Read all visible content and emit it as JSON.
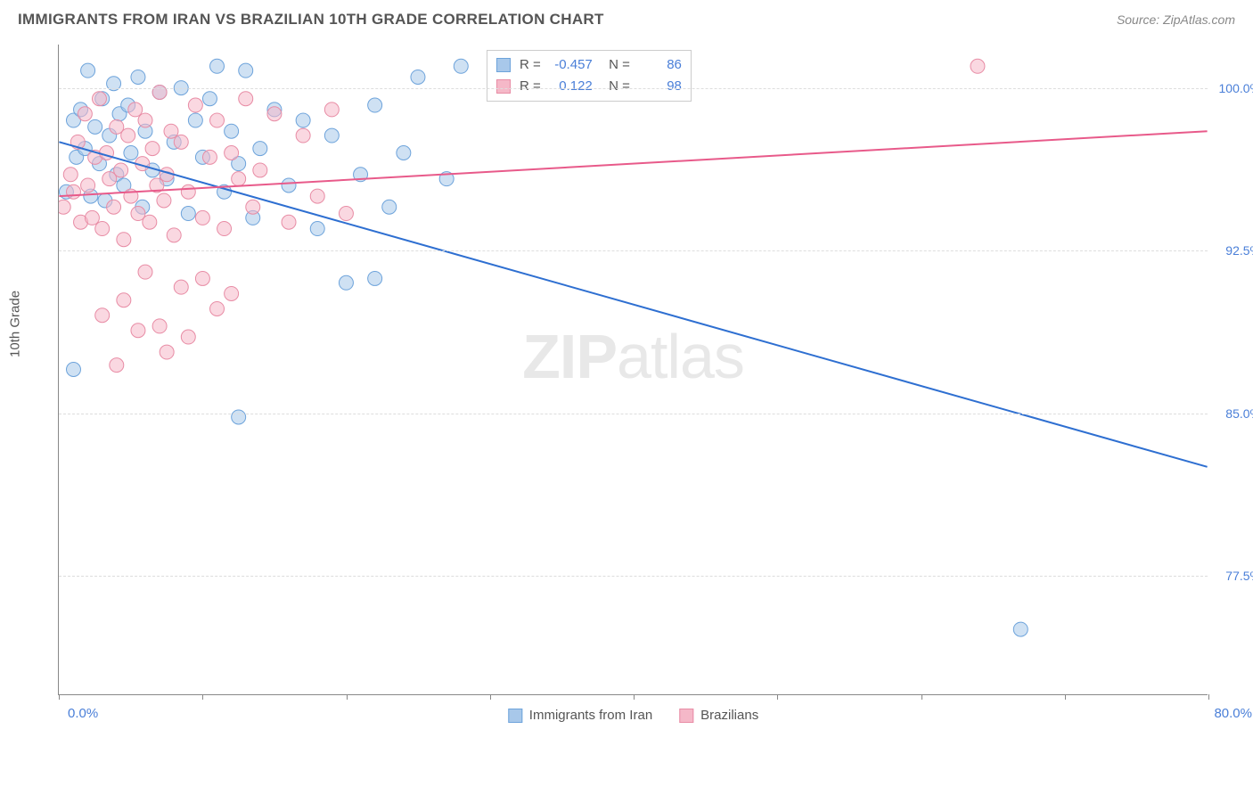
{
  "title": "IMMIGRANTS FROM IRAN VS BRAZILIAN 10TH GRADE CORRELATION CHART",
  "source": "Source: ZipAtlas.com",
  "watermark_bold": "ZIP",
  "watermark_light": "atlas",
  "ylabel": "10th Grade",
  "chart": {
    "type": "scatter",
    "xlim": [
      0,
      80
    ],
    "ylim": [
      72,
      102
    ],
    "x_ticks": [
      0,
      10,
      20,
      30,
      40,
      50,
      60,
      70,
      80
    ],
    "y_ticks": [
      77.5,
      85.0,
      92.5,
      100.0
    ],
    "y_tick_labels": [
      "77.5%",
      "85.0%",
      "92.5%",
      "100.0%"
    ],
    "x_min_label": "0.0%",
    "x_max_label": "80.0%",
    "background_color": "#ffffff",
    "grid_color": "#dddddd",
    "series": [
      {
        "name": "Immigrants from Iran",
        "color_fill": "#a8c8ea",
        "color_stroke": "#6da3db",
        "line_color": "#2e6fd1",
        "marker_radius": 8,
        "marker_opacity": 0.55,
        "R": "-0.457",
        "N": "86",
        "regression": {
          "x1": 0,
          "y1": 97.5,
          "x2": 80,
          "y2": 82.5
        },
        "points": [
          [
            0.5,
            95.2
          ],
          [
            1.0,
            98.5
          ],
          [
            1.2,
            96.8
          ],
          [
            1.5,
            99.0
          ],
          [
            1.8,
            97.2
          ],
          [
            2.0,
            100.8
          ],
          [
            2.2,
            95.0
          ],
          [
            2.5,
            98.2
          ],
          [
            2.8,
            96.5
          ],
          [
            3.0,
            99.5
          ],
          [
            3.2,
            94.8
          ],
          [
            3.5,
            97.8
          ],
          [
            3.8,
            100.2
          ],
          [
            4.0,
            96.0
          ],
          [
            4.2,
            98.8
          ],
          [
            4.5,
            95.5
          ],
          [
            4.8,
            99.2
          ],
          [
            5.0,
            97.0
          ],
          [
            5.5,
            100.5
          ],
          [
            5.8,
            94.5
          ],
          [
            6.0,
            98.0
          ],
          [
            6.5,
            96.2
          ],
          [
            7.0,
            99.8
          ],
          [
            7.5,
            95.8
          ],
          [
            8.0,
            97.5
          ],
          [
            8.5,
            100.0
          ],
          [
            9.0,
            94.2
          ],
          [
            9.5,
            98.5
          ],
          [
            10.0,
            96.8
          ],
          [
            10.5,
            99.5
          ],
          [
            11.0,
            101.0
          ],
          [
            11.5,
            95.2
          ],
          [
            12.0,
            98.0
          ],
          [
            12.5,
            96.5
          ],
          [
            13.0,
            100.8
          ],
          [
            13.5,
            94.0
          ],
          [
            14.0,
            97.2
          ],
          [
            15.0,
            99.0
          ],
          [
            16.0,
            95.5
          ],
          [
            17.0,
            98.5
          ],
          [
            18.0,
            93.5
          ],
          [
            19.0,
            97.8
          ],
          [
            20.0,
            91.0
          ],
          [
            21.0,
            96.0
          ],
          [
            22.0,
            99.2
          ],
          [
            23.0,
            94.5
          ],
          [
            24.0,
            97.0
          ],
          [
            25.0,
            100.5
          ],
          [
            27.0,
            95.8
          ],
          [
            28.0,
            101.0
          ],
          [
            1.0,
            87.0
          ],
          [
            12.5,
            84.8
          ],
          [
            22.0,
            91.2
          ],
          [
            67.0,
            75.0
          ]
        ]
      },
      {
        "name": "Brazilians",
        "color_fill": "#f5b8c8",
        "color_stroke": "#e88ca5",
        "line_color": "#e85a8a",
        "marker_radius": 8,
        "marker_opacity": 0.55,
        "R": "0.122",
        "N": "98",
        "regression": {
          "x1": 0,
          "y1": 95.0,
          "x2": 80,
          "y2": 98.0
        },
        "points": [
          [
            0.3,
            94.5
          ],
          [
            0.8,
            96.0
          ],
          [
            1.0,
            95.2
          ],
          [
            1.3,
            97.5
          ],
          [
            1.5,
            93.8
          ],
          [
            1.8,
            98.8
          ],
          [
            2.0,
            95.5
          ],
          [
            2.3,
            94.0
          ],
          [
            2.5,
            96.8
          ],
          [
            2.8,
            99.5
          ],
          [
            3.0,
            93.5
          ],
          [
            3.3,
            97.0
          ],
          [
            3.5,
            95.8
          ],
          [
            3.8,
            94.5
          ],
          [
            4.0,
            98.2
          ],
          [
            4.3,
            96.2
          ],
          [
            4.5,
            93.0
          ],
          [
            4.8,
            97.8
          ],
          [
            5.0,
            95.0
          ],
          [
            5.3,
            99.0
          ],
          [
            5.5,
            94.2
          ],
          [
            5.8,
            96.5
          ],
          [
            6.0,
            98.5
          ],
          [
            6.3,
            93.8
          ],
          [
            6.5,
            97.2
          ],
          [
            6.8,
            95.5
          ],
          [
            7.0,
            99.8
          ],
          [
            7.3,
            94.8
          ],
          [
            7.5,
            96.0
          ],
          [
            7.8,
            98.0
          ],
          [
            8.0,
            93.2
          ],
          [
            8.5,
            97.5
          ],
          [
            9.0,
            95.2
          ],
          [
            9.5,
            99.2
          ],
          [
            10.0,
            94.0
          ],
          [
            10.5,
            96.8
          ],
          [
            11.0,
            98.5
          ],
          [
            11.5,
            93.5
          ],
          [
            12.0,
            97.0
          ],
          [
            12.5,
            95.8
          ],
          [
            13.0,
            99.5
          ],
          [
            13.5,
            94.5
          ],
          [
            14.0,
            96.2
          ],
          [
            15.0,
            98.8
          ],
          [
            16.0,
            93.8
          ],
          [
            17.0,
            97.8
          ],
          [
            18.0,
            95.0
          ],
          [
            19.0,
            99.0
          ],
          [
            20.0,
            94.2
          ],
          [
            3.0,
            89.5
          ],
          [
            4.5,
            90.2
          ],
          [
            5.5,
            88.8
          ],
          [
            6.0,
            91.5
          ],
          [
            7.0,
            89.0
          ],
          [
            8.5,
            90.8
          ],
          [
            9.0,
            88.5
          ],
          [
            10.0,
            91.2
          ],
          [
            11.0,
            89.8
          ],
          [
            12.0,
            90.5
          ],
          [
            4.0,
            87.2
          ],
          [
            7.5,
            87.8
          ],
          [
            64.0,
            101.0
          ]
        ]
      }
    ]
  },
  "legend_bottom": [
    {
      "label": "Immigrants from Iran",
      "fill": "#a8c8ea",
      "stroke": "#6da3db"
    },
    {
      "label": "Brazilians",
      "fill": "#f5b8c8",
      "stroke": "#e88ca5"
    }
  ]
}
